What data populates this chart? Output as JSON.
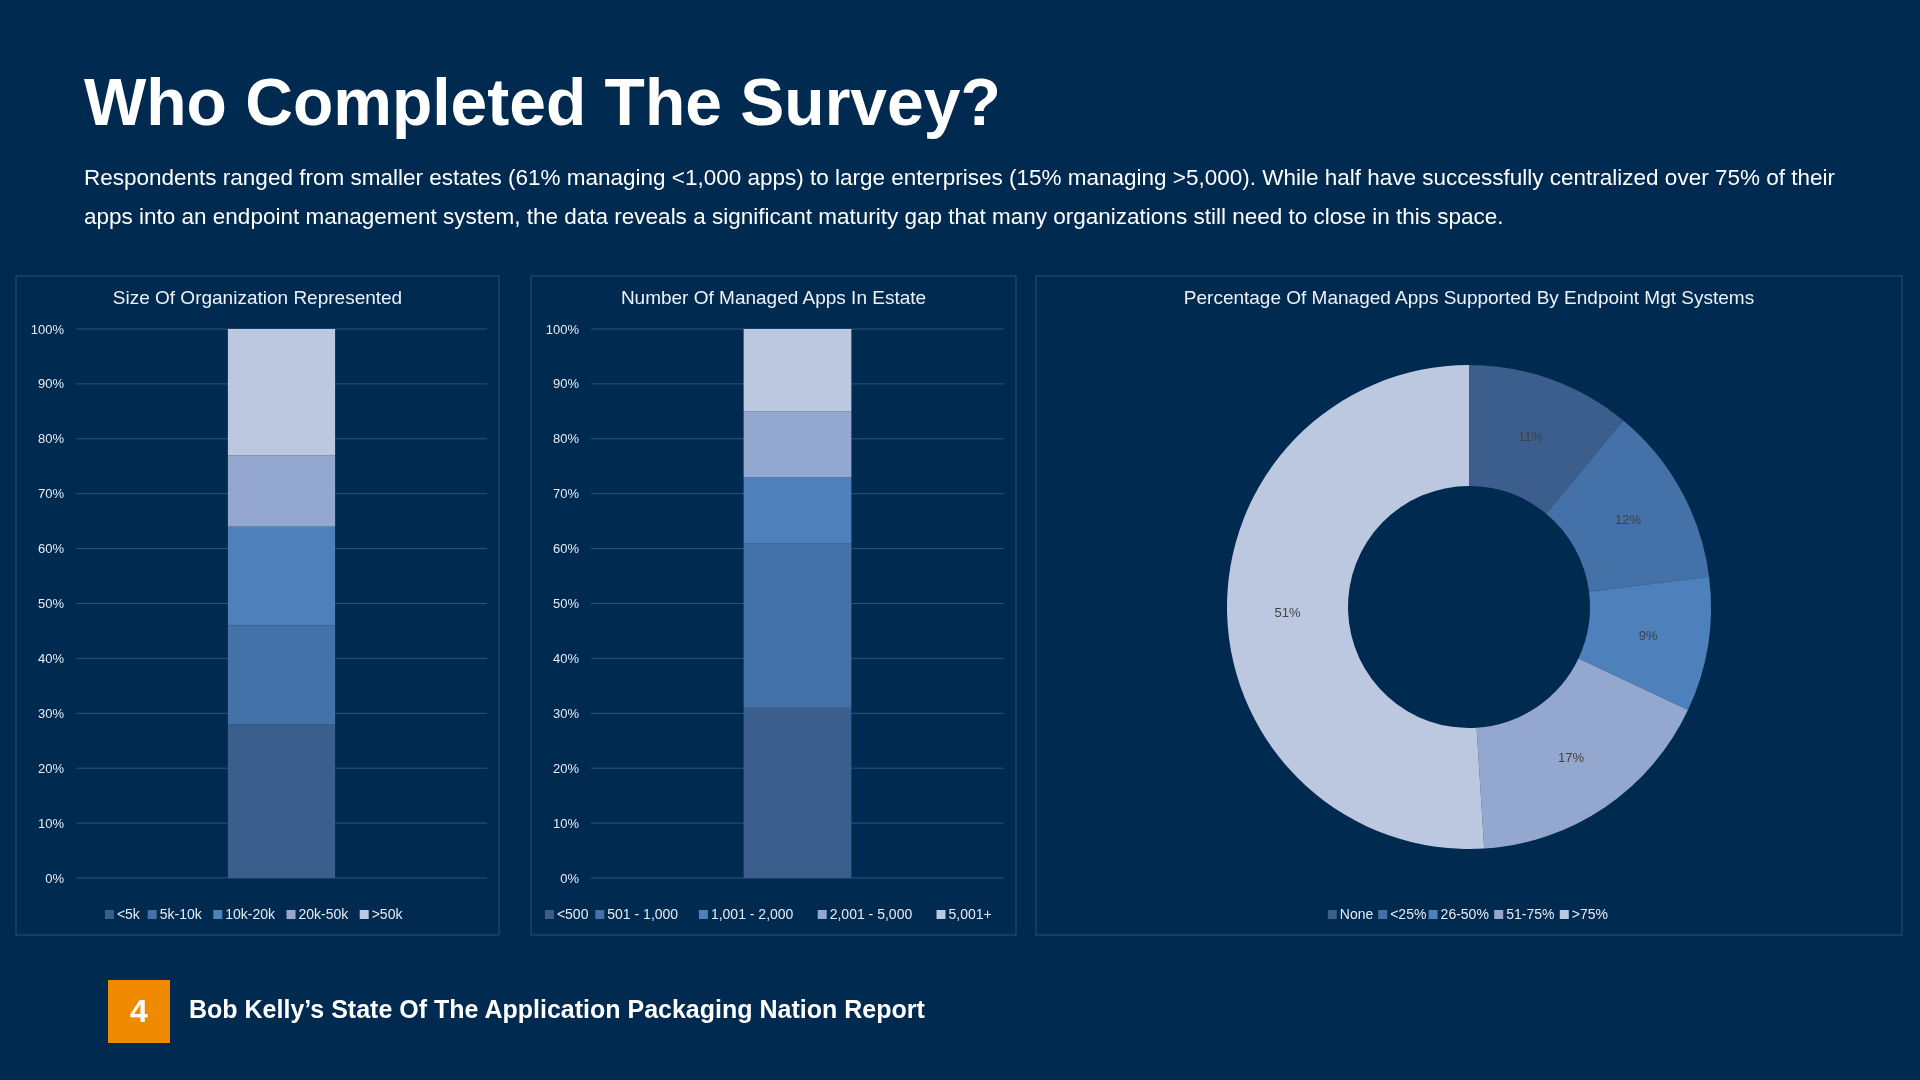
{
  "chart_data": [
    {
      "type": "bar",
      "title": "Size Of Organization Represented",
      "categories": [
        null
      ],
      "stacked": true,
      "legend": "bottom",
      "grid": "y",
      "ylim": [
        0,
        100
      ],
      "yticks": [
        {
          "value": 0,
          "label": "0%"
        },
        {
          "value": 10,
          "label": "10%"
        },
        {
          "value": 20,
          "label": "20%"
        },
        {
          "value": 30,
          "label": "30%"
        },
        {
          "value": 40,
          "label": "40%"
        },
        {
          "value": 50,
          "label": "50%"
        },
        {
          "value": 60,
          "label": "60%"
        },
        {
          "value": 70,
          "label": "70%"
        },
        {
          "value": 80,
          "label": "80%"
        },
        {
          "value": 90,
          "label": "90%"
        },
        {
          "value": 100,
          "label": "100%"
        }
      ],
      "series": [
        {
          "name": "<5k",
          "color": "#3b5e8c",
          "values": [
            28
          ]
        },
        {
          "name": "5k-10k",
          "color": "#4472a8",
          "values": [
            18
          ]
        },
        {
          "name": "10k-20k",
          "color": "#4e80bb",
          "values": [
            18
          ]
        },
        {
          "name": "20k-50k",
          "color": "#94a8cf",
          "values": [
            13
          ]
        },
        {
          "name": ">50k",
          "color": "#bcc8e0",
          "values": [
            23
          ]
        }
      ],
      "annotations": [
        "Who Completed The Survey?",
        "Respondents ranged from smaller estates (61% managing <1,000 apps) to large enterprises (15% managing >5,000). While half have successfully centralized over 75% of their apps into an endpoint management system, the data reveals a significant maturity gap that many organizations still need to close in this space.",
        "4",
        "Bob Kelly’s State Of The Application Packaging Nation Report"
      ]
    },
    {
      "type": "bar",
      "title": "Number Of Managed Apps In Estate",
      "categories": [
        null
      ],
      "stacked": true,
      "legend": "bottom",
      "grid": "y",
      "ylim": [
        0,
        100
      ],
      "yticks": [
        {
          "value": 0,
          "label": "0%"
        },
        {
          "value": 10,
          "label": "10%"
        },
        {
          "value": 20,
          "label": "20%"
        },
        {
          "value": 30,
          "label": "30%"
        },
        {
          "value": 40,
          "label": "40%"
        },
        {
          "value": 50,
          "label": "50%"
        },
        {
          "value": 60,
          "label": "60%"
        },
        {
          "value": 70,
          "label": "70%"
        },
        {
          "value": 80,
          "label": "80%"
        },
        {
          "value": 90,
          "label": "90%"
        },
        {
          "value": 100,
          "label": "100%"
        }
      ],
      "series": [
        {
          "name": "<500",
          "color": "#3b5e8c",
          "values": [
            31
          ]
        },
        {
          "name": "501 - 1,000",
          "color": "#4472a8",
          "values": [
            30
          ]
        },
        {
          "name": "1,001 - 2,000",
          "color": "#4e80bb",
          "values": [
            12
          ]
        },
        {
          "name": "2,001 - 5,000",
          "color": "#94a8cf",
          "values": [
            12
          ]
        },
        {
          "name": "5,001+",
          "color": "#bcc8e0",
          "values": [
            15
          ]
        }
      ]
    },
    {
      "type": "donut",
      "title": "Percentage Of Managed Apps Supported By Endpoint Mgt Systems",
      "legend": "bottom",
      "categories": [
        "None",
        "<25%",
        "26-50%",
        "51-75%",
        ">75%"
      ],
      "values": [
        11,
        12,
        9,
        17,
        51
      ],
      "value_labels": [
        "11%",
        "12%",
        "9%",
        "17%",
        "51%"
      ],
      "colors": [
        "#3b5e8c",
        "#4472a8",
        "#4e80bb",
        "#94a8cf",
        "#bcc8e0"
      ]
    }
  ]
}
